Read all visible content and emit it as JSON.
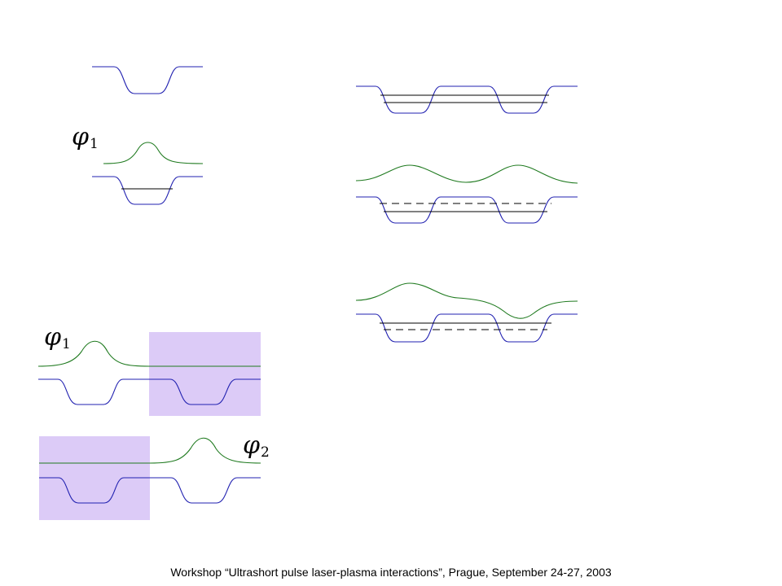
{
  "labels": {
    "phi1_top": {
      "symbol": "φ",
      "sub": "1"
    },
    "phi1_bottom": {
      "symbol": "φ",
      "sub": "1"
    },
    "phi2_bottom": {
      "symbol": "φ",
      "sub": "2"
    }
  },
  "footer": {
    "text": "Workshop “Ultrashort pulse laser-plasma interactions”, Prague, September 24-27, 2003"
  },
  "colors": {
    "potential": "#2020b0",
    "wavefunction": "#1f7a1f",
    "level": "#000000",
    "shade": "#dccbf7"
  }
}
